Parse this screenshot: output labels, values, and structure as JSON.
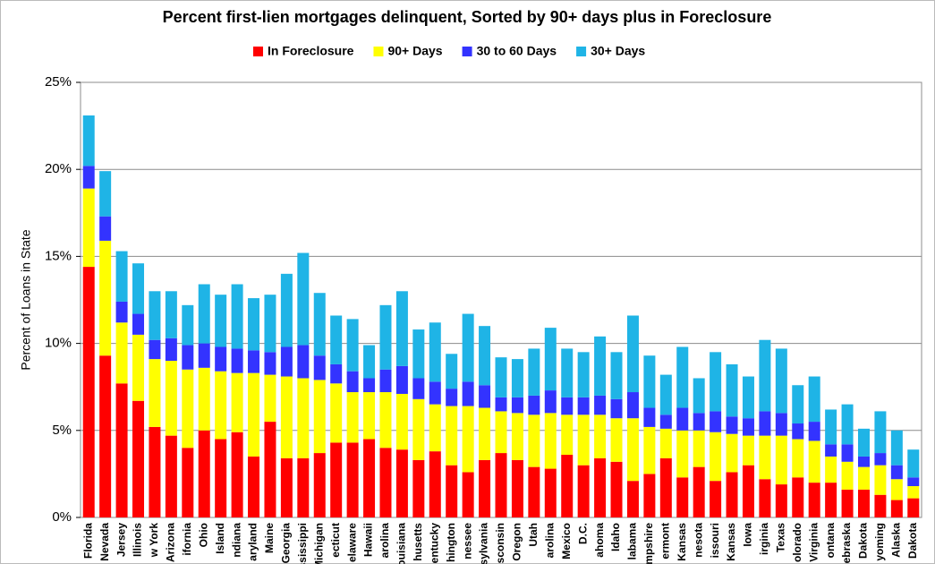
{
  "chart_data": {
    "type": "stacked_bar",
    "title": "Percent first-lien mortgages delinquent, Sorted by 90+ days plus in Foreclosure",
    "y_label": "Percent of Loans in State",
    "categories": [
      "Florida",
      "Nevada",
      "Jersey",
      "Illinois",
      "w York",
      "Arizona",
      "ifornia",
      "Ohio",
      "Island",
      "ndiana",
      "aryland",
      "Maine",
      "Georgia",
      "ississippi",
      "Michigan",
      "ecticut",
      "elaware",
      "Hawaii",
      "arolina",
      "ouisiana",
      "husetts",
      "entucky",
      "hington",
      "nessee",
      "sylvania",
      "isconsin",
      "Oregon",
      "Utah",
      "arolina",
      "Mexico",
      "D.C.",
      "ahoma",
      "Idaho",
      "labama",
      "mpshire",
      "ermont",
      "Kansas",
      "nesota",
      "issouri",
      "Kansas",
      "Iowa",
      "irginia",
      "Texas",
      "olorado",
      "Virginia",
      "ontana",
      "ebraska",
      "Dakota",
      "yoming",
      "Alaska",
      "Dakota"
    ],
    "series": [
      {
        "name": "In Foreclosure",
        "color": "#ff0000",
        "values": [
          14.4,
          9.3,
          7.7,
          6.7,
          5.2,
          4.7,
          4.0,
          5.0,
          4.5,
          4.9,
          3.5,
          5.5,
          3.4,
          3.4,
          3.7,
          4.3,
          4.3,
          4.5,
          4.0,
          3.9,
          3.3,
          3.8,
          3.0,
          2.6,
          3.3,
          3.7,
          3.3,
          2.9,
          2.8,
          3.6,
          3.0,
          3.4,
          3.2,
          2.1,
          2.5,
          3.4,
          2.3,
          2.9,
          2.1,
          2.6,
          3.0,
          2.2,
          1.9,
          2.3,
          2.0,
          2.0,
          1.6,
          1.6,
          1.3,
          1.0,
          1.1
        ]
      },
      {
        "name": "90+ Days",
        "color": "#ffff00",
        "values": [
          4.5,
          6.6,
          3.5,
          3.8,
          3.9,
          4.3,
          4.5,
          3.6,
          3.9,
          3.4,
          4.8,
          2.7,
          4.7,
          4.6,
          4.2,
          3.4,
          2.9,
          2.7,
          3.2,
          3.2,
          3.5,
          2.7,
          3.4,
          3.8,
          3.0,
          2.4,
          2.7,
          3.0,
          3.2,
          2.3,
          2.9,
          2.5,
          2.5,
          3.6,
          2.7,
          1.7,
          2.7,
          2.1,
          2.8,
          2.2,
          1.7,
          2.5,
          2.8,
          2.2,
          2.4,
          1.5,
          1.6,
          1.3,
          1.7,
          1.2,
          0.7
        ]
      },
      {
        "name": "30 to 60 Days",
        "color": "#3333ff",
        "values": [
          1.3,
          1.4,
          1.2,
          1.2,
          1.1,
          1.3,
          1.4,
          1.4,
          1.4,
          1.4,
          1.3,
          1.3,
          1.7,
          1.9,
          1.4,
          1.1,
          1.2,
          0.8,
          1.3,
          1.6,
          1.2,
          1.3,
          1.0,
          1.4,
          1.3,
          0.8,
          0.9,
          1.1,
          1.3,
          1.0,
          1.0,
          1.1,
          1.1,
          1.5,
          1.1,
          0.8,
          1.3,
          1.0,
          1.2,
          1.0,
          1.0,
          1.4,
          1.3,
          0.9,
          1.1,
          0.7,
          1.0,
          0.6,
          0.7,
          0.8,
          0.5
        ]
      },
      {
        "name": "30+ Days",
        "color": "#1fb4e6",
        "values": [
          2.9,
          2.6,
          2.9,
          2.9,
          2.8,
          2.7,
          2.3,
          3.4,
          3.0,
          3.7,
          3.0,
          3.3,
          4.2,
          5.3,
          3.6,
          2.8,
          3.0,
          1.9,
          3.7,
          4.3,
          2.8,
          3.4,
          2.0,
          3.9,
          3.4,
          2.3,
          2.2,
          2.7,
          3.6,
          2.8,
          2.6,
          3.4,
          2.7,
          4.4,
          3.0,
          2.3,
          3.5,
          2.0,
          3.4,
          3.0,
          2.4,
          4.1,
          3.7,
          2.2,
          2.6,
          2.0,
          2.3,
          1.6,
          2.4,
          2.0,
          1.6
        ]
      }
    ],
    "ylim": [
      0,
      25
    ],
    "yticks": [
      {
        "value": 0,
        "label": "0%"
      },
      {
        "value": 5,
        "label": "5%"
      },
      {
        "value": 10,
        "label": "10%"
      },
      {
        "value": 15,
        "label": "15%"
      },
      {
        "value": 20,
        "label": "20%"
      },
      {
        "value": 25,
        "label": "25%"
      }
    ],
    "grid": true,
    "legend": "top"
  }
}
